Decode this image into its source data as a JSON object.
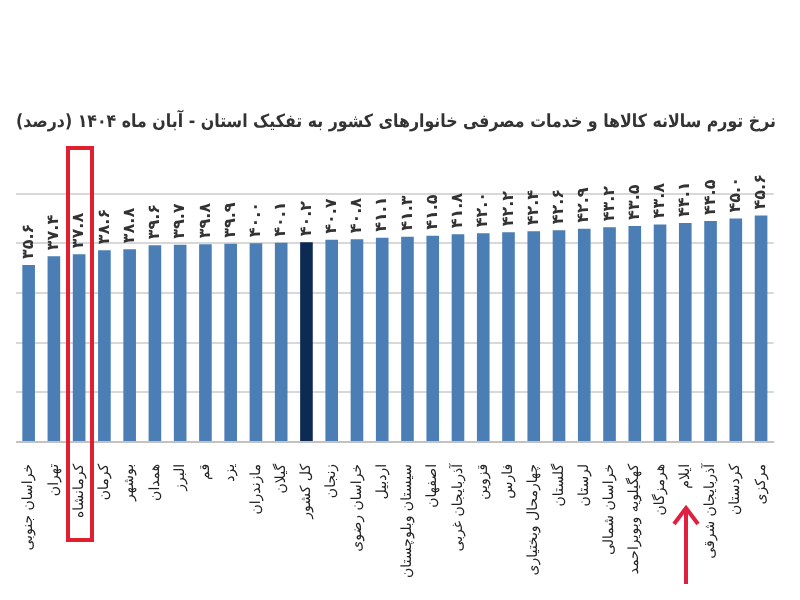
{
  "chart_data": {
    "type": "bar",
    "title": "نرخ تورم سالانه کالاها و خدمات مصرفی خانوارهای کشور به تفکیک استان - آبان ماه ۱۴۰۴ (درصد)",
    "categories": [
      "خراسان جنوبی",
      "تهران",
      "کرمانشاه",
      "کرمان",
      "بوشهر",
      "همدان",
      "البرز",
      "قم",
      "یزد",
      "مازندران",
      "گیلان",
      "کل کشور",
      "زنجان",
      "خراسان رضوی",
      "اردبیل",
      "سیستان وبلوچستان",
      "اصفهان",
      "آذربایجان غربی",
      "قزوین",
      "فارس",
      "چهارمحال وبختیاری",
      "گلستان",
      "لرستان",
      "خراسان شمالی",
      "کهگیلویه وبویراحمد",
      "هرمزگان",
      "ایلام",
      "آذربایجان شرقی",
      "کردستان",
      "مرکزی"
    ],
    "series": [
      {
        "colors": [
          "#4a7eb5",
          "#4a7eb5",
          "#4a7eb5",
          "#4a7eb5",
          "#4a7eb5",
          "#4a7eb5",
          "#4a7eb5",
          "#4a7eb5",
          "#4a7eb5",
          "#4a7eb5",
          "#4a7eb5",
          "#0d2a52",
          "#4a7eb5",
          "#4a7eb5",
          "#4a7eb5",
          "#4a7eb5",
          "#4a7eb5",
          "#4a7eb5",
          "#4a7eb5",
          "#4a7eb5",
          "#4a7eb5",
          "#4a7eb5",
          "#4a7eb5",
          "#4a7eb5",
          "#4a7eb5",
          "#4a7eb5",
          "#4a7eb5",
          "#4a7eb5",
          "#4a7eb5",
          "#4a7eb5"
        ],
        "values": [
          35.6,
          37.4,
          37.8,
          38.6,
          38.8,
          39.6,
          39.7,
          39.8,
          39.9,
          40.0,
          40.1,
          40.2,
          40.7,
          40.8,
          41.1,
          41.3,
          41.5,
          41.8,
          42.0,
          42.2,
          42.4,
          42.6,
          42.9,
          43.2,
          43.5,
          43.8,
          44.1,
          44.5,
          45.0,
          45.6
        ],
        "value_labels": [
          "۳۵.۶",
          "۳۷.۴",
          "۳۷.۸",
          "۳۸.۶",
          "۳۸.۸",
          "۳۹.۶",
          "۳۹.۷",
          "۳۹.۸",
          "۳۹.۹",
          "۴۰.۰",
          "۴۰.۱",
          "۴۰.۲",
          "۴۰.۷",
          "۴۰.۸",
          "۴۱.۱",
          "۴۱.۳",
          "۴۱.۵",
          "۴۱.۸",
          "۴۲.۰",
          "۴۲.۲",
          "۴۲.۴",
          "۴۲.۶",
          "۴۲.۹",
          "۴۳.۲",
          "۴۳.۵",
          "۴۳.۸",
          "۴۴.۱",
          "۴۴.۵",
          "۴۵.۰",
          "۴۵.۶"
        ]
      }
    ],
    "grid": "y",
    "legend": false,
    "tick_labels": "x"
  }
}
